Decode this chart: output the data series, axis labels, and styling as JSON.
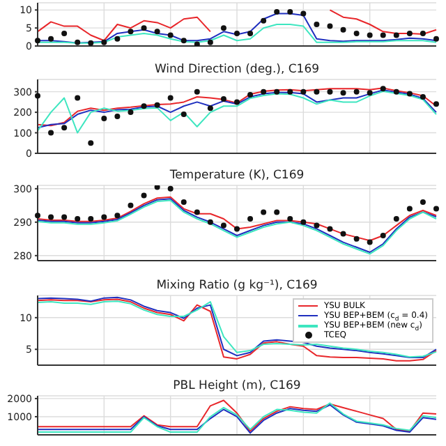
{
  "chart_data": [
    {
      "type": "line",
      "categories": [
        null,
        null,
        null,
        null,
        null,
        null,
        null,
        null,
        null,
        null,
        null,
        null,
        null,
        null,
        null,
        null,
        null,
        null,
        null,
        null,
        null,
        null,
        null,
        null,
        null,
        null,
        null,
        null,
        null,
        null,
        null
      ],
      "ylim": [
        0,
        12
      ],
      "yticks": [
        0,
        5,
        10
      ],
      "grid": true,
      "tick_labels": "y",
      "series": [
        {
          "color": "#e8262a",
          "values": [
            4,
            6.7,
            5.5,
            5.5,
            3,
            1.5,
            6,
            5,
            7,
            6.5,
            5,
            7.5,
            8,
            4,
            null,
            null,
            null,
            null,
            null,
            null,
            null,
            null,
            10,
            8,
            7.5,
            6,
            4,
            3.5,
            3.5,
            3.3,
            4.5
          ]
        },
        {
          "color": "#1f2fbf",
          "values": [
            1.5,
            1.5,
            1.2,
            0.8,
            1,
            1.2,
            3.5,
            4,
            4.5,
            3.5,
            3,
            1.5,
            1.5,
            2,
            4,
            3.2,
            4,
            7.5,
            9,
            9,
            8.5,
            2,
            1.5,
            1.3,
            1.5,
            1.5,
            1.5,
            1.8,
            2.2,
            2,
            1.5
          ]
        },
        {
          "color": "#3ee6c0",
          "values": [
            1,
            1,
            1,
            0.8,
            0.8,
            1,
            2.5,
            3,
            3.5,
            3,
            2,
            1.2,
            1,
            1.5,
            3,
            1.5,
            2,
            5,
            6,
            6,
            5.5,
            1,
            1,
            1,
            1.2,
            1.2,
            1.2,
            1.5,
            1.5,
            1.5,
            1
          ]
        },
        {
          "type": "scatter",
          "marker": "circle",
          "color": "#111111",
          "values": [
            1.5,
            2,
            3.5,
            1,
            0.8,
            1,
            2,
            4,
            5,
            4,
            3,
            1.5,
            0.5,
            1,
            5,
            3.5,
            3.5,
            7,
            9.5,
            9.5,
            9,
            6,
            5.5,
            4.5,
            3.5,
            3,
            3,
            3,
            3.5,
            3.5,
            2
          ]
        }
      ]
    },
    {
      "type": "line",
      "title": "Wind Direction (deg.), C169",
      "categories": [
        null,
        null,
        null,
        null,
        null,
        null,
        null,
        null,
        null,
        null,
        null,
        null,
        null,
        null,
        null,
        null,
        null,
        null,
        null,
        null,
        null,
        null,
        null,
        null,
        null,
        null,
        null,
        null,
        null,
        null,
        null
      ],
      "ylim": [
        0,
        360
      ],
      "yticks": [
        0,
        100,
        200,
        300
      ],
      "grid": true,
      "tick_labels": "y",
      "series": [
        {
          "color": "#e8262a",
          "values": [
            140,
            135,
            150,
            205,
            220,
            210,
            220,
            225,
            232,
            238,
            240,
            250,
            275,
            270,
            262,
            245,
            288,
            302,
            308,
            310,
            305,
            310,
            315,
            315,
            315,
            310,
            318,
            305,
            295,
            280,
            230
          ]
        },
        {
          "color": "#1f2fbf",
          "values": [
            125,
            140,
            145,
            190,
            210,
            200,
            212,
            215,
            226,
            230,
            200,
            230,
            250,
            230,
            255,
            240,
            275,
            290,
            296,
            296,
            290,
            250,
            260,
            270,
            270,
            290,
            308,
            298,
            288,
            268,
            200
          ]
        },
        {
          "color": "#3ee6c0",
          "values": [
            110,
            200,
            270,
            100,
            200,
            220,
            205,
            210,
            218,
            222,
            160,
            200,
            130,
            200,
            230,
            230,
            268,
            282,
            290,
            288,
            270,
            240,
            260,
            250,
            250,
            280,
            302,
            292,
            282,
            262,
            190
          ]
        },
        {
          "type": "scatter",
          "marker": "circle",
          "color": "#111111",
          "values": [
            280,
            100,
            125,
            270,
            50,
            170,
            180,
            200,
            230,
            235,
            270,
            190,
            300,
            220,
            265,
            250,
            285,
            300,
            300,
            300,
            300,
            300,
            300,
            295,
            300,
            295,
            315,
            300,
            290,
            275,
            240
          ]
        }
      ]
    },
    {
      "type": "line",
      "title": "Temperature (K), C169",
      "categories": [
        null,
        null,
        null,
        null,
        null,
        null,
        null,
        null,
        null,
        null,
        null,
        null,
        null,
        null,
        null,
        null,
        null,
        null,
        null,
        null,
        null,
        null,
        null,
        null,
        null,
        null,
        null,
        null,
        null,
        null,
        null
      ],
      "ylim": [
        278.5,
        301
      ],
      "yticks": [
        280,
        290,
        300
      ],
      "grid": true,
      "tick_labels": "y",
      "series": [
        {
          "color": "#e8262a",
          "values": [
            291,
            290.6,
            290.6,
            290.2,
            290.2,
            290.6,
            291.2,
            293.2,
            295.5,
            297.2,
            297.5,
            294,
            292.5,
            292.5,
            291,
            288,
            288.5,
            289.5,
            290.5,
            290.5,
            290,
            289.5,
            288,
            286.5,
            285.5,
            284.5,
            286,
            289,
            292,
            293.5,
            292
          ]
        },
        {
          "color": "#1f2fbf",
          "values": [
            290.6,
            290.2,
            290.2,
            289.8,
            289.8,
            290.2,
            290.8,
            292.8,
            295,
            296.7,
            297,
            293.5,
            291.5,
            290,
            288,
            286,
            287.5,
            289,
            290,
            290,
            289.5,
            288,
            286,
            284,
            282.5,
            281,
            283.5,
            288,
            291.5,
            293,
            291.6
          ]
        },
        {
          "color": "#3ee6c0",
          "values": [
            290.2,
            289.8,
            289.8,
            289.4,
            289.4,
            289.8,
            290.4,
            292.4,
            294.5,
            296.2,
            296.5,
            293,
            291,
            289.5,
            287.5,
            285.5,
            287,
            288.5,
            289.5,
            290,
            289,
            287.5,
            285.5,
            283.5,
            282,
            280.5,
            283,
            287.5,
            291,
            293,
            291
          ]
        },
        {
          "type": "scatter",
          "marker": "circle",
          "color": "#111111",
          "values": [
            292,
            291.5,
            291.5,
            291,
            291,
            291.5,
            292,
            295,
            298,
            300.5,
            300,
            296,
            293,
            290,
            289,
            288,
            291,
            293,
            293,
            291,
            290,
            289,
            288,
            286.5,
            285,
            284,
            286,
            291,
            294,
            296,
            294
          ]
        }
      ]
    },
    {
      "type": "line",
      "title": "Mixing Ratio (g kg⁻¹), C169",
      "categories": [
        null,
        null,
        null,
        null,
        null,
        null,
        null,
        null,
        null,
        null,
        null,
        null,
        null,
        null,
        null,
        null,
        null,
        null,
        null,
        null,
        null,
        null,
        null,
        null,
        null,
        null,
        null,
        null,
        null,
        null,
        null
      ],
      "ylim": [
        2.5,
        13.5
      ],
      "yticks": [
        5,
        10
      ],
      "grid": true,
      "tick_labels": "y",
      "legend": "top right",
      "series": [
        {
          "name": "YSU BULK",
          "color": "#e8262a",
          "values": [
            12.7,
            12.8,
            12.7,
            12.7,
            12.5,
            12.8,
            12.9,
            12.5,
            11.5,
            10.8,
            10.5,
            9.5,
            12,
            11,
            3.8,
            3.5,
            4.2,
            6,
            6.2,
            5.8,
            5.5,
            4,
            3.8,
            3.7,
            3.7,
            3.6,
            3.5,
            3.2,
            3.2,
            3.4,
            4.8
          ]
        },
        {
          "name": "YSU BEP+BEM (c$_{d}$ = 0.4)",
          "color": "#1f2fbf",
          "values": [
            13,
            13.1,
            13,
            12.9,
            12.6,
            13.1,
            13.2,
            12.8,
            11.8,
            11.1,
            10.8,
            9.9,
            11.5,
            12,
            5,
            4,
            4.5,
            6.3,
            6.5,
            6.3,
            6.1,
            5.5,
            5.2,
            5,
            4.8,
            4.5,
            4.3,
            4,
            3.7,
            3.7,
            5
          ]
        },
        {
          "name": "YSU BEP+BEM (new c$_{d}$)",
          "color": "#3ee6c0",
          "values": [
            12.4,
            12.5,
            12.3,
            12.3,
            12.1,
            12.5,
            12.6,
            12.2,
            11.2,
            10.5,
            10.2,
            10.2,
            11.2,
            12.5,
            7,
            4.5,
            4.8,
            5.8,
            5.9,
            5.8,
            5.7,
            5.8,
            5.5,
            5.2,
            5,
            4.7,
            4.5,
            4.2,
            3.8,
            3.9,
            4.6
          ]
        },
        {
          "name": "TCEQ",
          "type": "scatter",
          "marker": "circle",
          "color": "#111111",
          "values": [
            null,
            null,
            null,
            null,
            null,
            null,
            null,
            null,
            null,
            null,
            null,
            null,
            null,
            null,
            null,
            null,
            null,
            null,
            null,
            null,
            null,
            null,
            null,
            null,
            null,
            null,
            null,
            null,
            null,
            null,
            null
          ]
        }
      ]
    },
    {
      "type": "line",
      "title": "PBL Height (m), C169",
      "categories": [
        null,
        null,
        null,
        null,
        null,
        null,
        null,
        null,
        null,
        null,
        null,
        null,
        null,
        null,
        null,
        null,
        null,
        null,
        null,
        null,
        null,
        null,
        null,
        null,
        null,
        null,
        null,
        null,
        null,
        null,
        null
      ],
      "ylim": [
        0,
        2150
      ],
      "yticks": [
        1000,
        2000
      ],
      "grid": true,
      "tick_labels": "y",
      "series": [
        {
          "color": "#e8262a",
          "values": [
            450,
            450,
            450,
            450,
            450,
            450,
            450,
            450,
            1050,
            550,
            450,
            450,
            450,
            1600,
            1900,
            1200,
            200,
            900,
            1300,
            1550,
            1450,
            1400,
            1700,
            1500,
            1300,
            1100,
            900,
            300,
            200,
            1200,
            1150
          ]
        },
        {
          "color": "#1f2fbf",
          "values": [
            300,
            300,
            300,
            300,
            300,
            300,
            300,
            300,
            1000,
            500,
            300,
            300,
            300,
            900,
            1400,
            1000,
            100,
            800,
            1200,
            1450,
            1350,
            1300,
            1650,
            1100,
            700,
            600,
            500,
            250,
            150,
            950,
            850
          ]
        },
        {
          "color": "#3ee6c0",
          "values": [
            150,
            150,
            150,
            150,
            150,
            150,
            150,
            150,
            950,
            450,
            150,
            150,
            150,
            1000,
            1500,
            1100,
            300,
            1000,
            1400,
            1350,
            1250,
            1200,
            1750,
            1150,
            750,
            650,
            550,
            350,
            250,
            1050,
            950
          ]
        }
      ]
    }
  ]
}
